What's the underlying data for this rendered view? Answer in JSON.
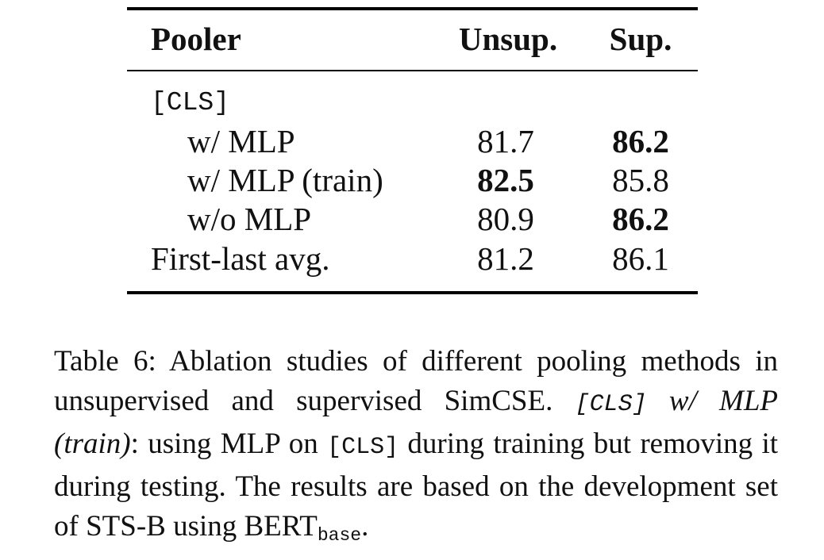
{
  "table": {
    "headers": {
      "pooler": "Pooler",
      "unsup": "Unsup.",
      "sup": "Sup."
    },
    "group_label": "[CLS]",
    "rows": [
      {
        "label": "w/ MLP",
        "unsup": "81.7",
        "sup": "86.2",
        "unsup_bold": false,
        "sup_bold": true
      },
      {
        "label": "w/ MLP (train)",
        "unsup": "82.5",
        "sup": "85.8",
        "unsup_bold": true,
        "sup_bold": false
      },
      {
        "label": "w/o MLP",
        "unsup": "80.9",
        "sup": "86.2",
        "unsup_bold": false,
        "sup_bold": true
      },
      {
        "label": "First-last avg.",
        "unsup": "81.2",
        "sup": "86.1",
        "unsup_bold": false,
        "sup_bold": false
      }
    ]
  },
  "caption": {
    "lead": "Table 6: Ablation studies of different pooling methods in unsupervised and supervised SimCSE.",
    "cls_mono": "[CLS]",
    "ref_italic": "w/ MLP (train)",
    "mid": ": using MLP on",
    "cls_mono_2": "[CLS]",
    "rest": "during training but removing it during testing. The results are based on the development set of STS-B using BERT",
    "subscript": "base",
    "end": "."
  }
}
